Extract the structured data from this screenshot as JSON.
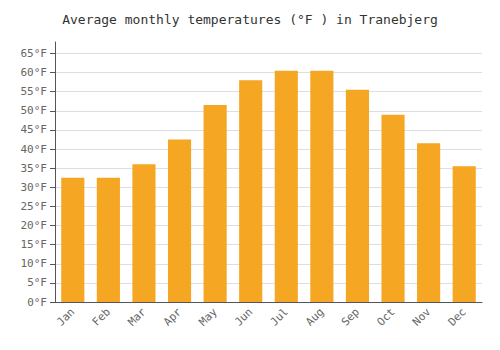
{
  "chart_data": {
    "type": "bar",
    "title": "Average monthly temperatures (°F ) in Tranebjerg",
    "categories": [
      "Jan",
      "Feb",
      "Mar",
      "Apr",
      "May",
      "Jun",
      "Jul",
      "Aug",
      "Sep",
      "Oct",
      "Nov",
      "Dec"
    ],
    "values": [
      32.5,
      32.5,
      36.0,
      42.5,
      51.5,
      58.0,
      60.5,
      60.5,
      55.5,
      49.0,
      41.5,
      35.5
    ],
    "color": "#F5A623",
    "ylim": [
      0,
      68
    ],
    "yticks": [
      {
        "value": 0,
        "label": "0°F"
      },
      {
        "value": 5,
        "label": "5°F"
      },
      {
        "value": 10,
        "label": "10°F"
      },
      {
        "value": 15,
        "label": "15°F"
      },
      {
        "value": 20,
        "label": "20°F"
      },
      {
        "value": 25,
        "label": "25°F"
      },
      {
        "value": 30,
        "label": "30°F"
      },
      {
        "value": 35,
        "label": "35°F"
      },
      {
        "value": 40,
        "label": "40°F"
      },
      {
        "value": 45,
        "label": "45°F"
      },
      {
        "value": 50,
        "label": "50°F"
      },
      {
        "value": 55,
        "label": "55°F"
      },
      {
        "value": 60,
        "label": "60°F"
      },
      {
        "value": 65,
        "label": "65°F"
      }
    ],
    "grid": true
  }
}
